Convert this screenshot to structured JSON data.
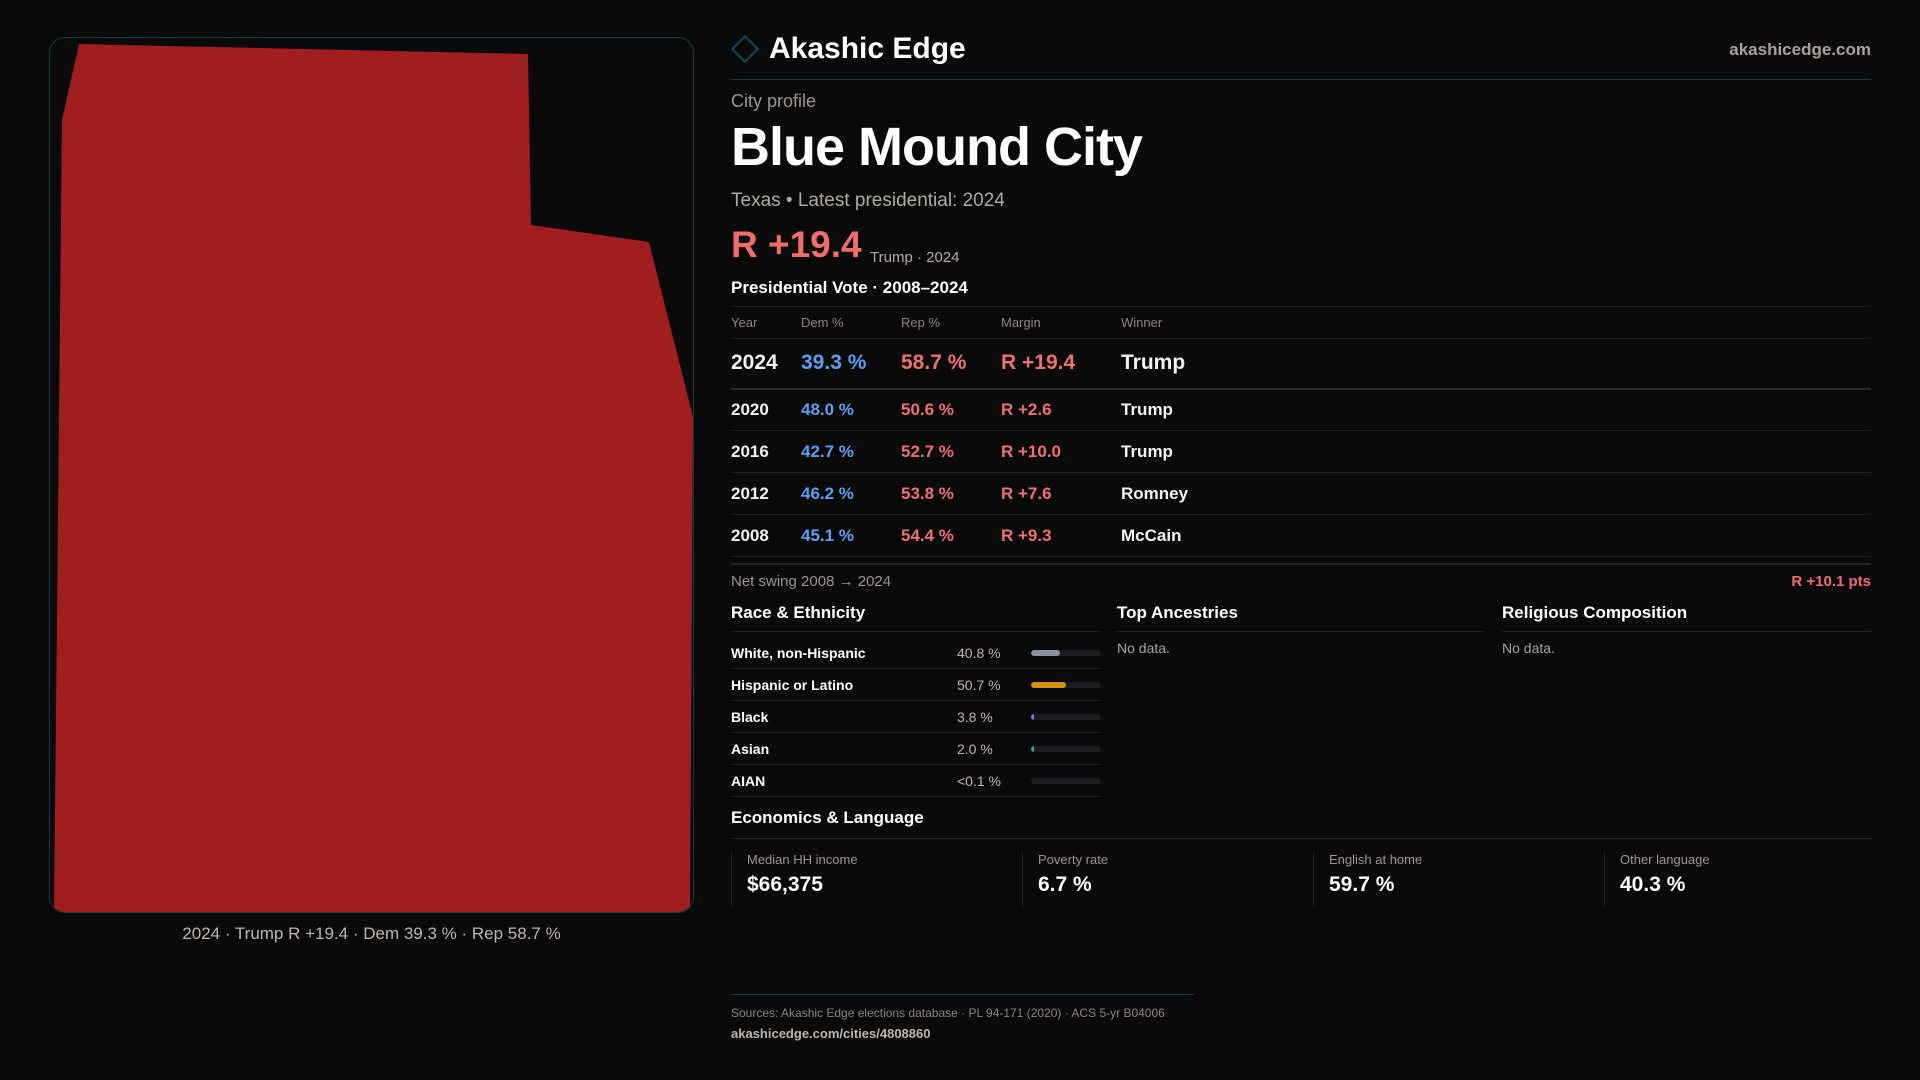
{
  "colors": {
    "rep_fill": "#a01e1f",
    "dem": "#5aa0f0",
    "rep": "#f07070",
    "accent": "#0e4a55",
    "background": "#0a0a0b"
  },
  "map": {
    "winner_party": "R",
    "caption": "2024 · Trump R +19.4 · Dem 39.3 % · Rep 58.7 %"
  },
  "header": {
    "brand": "Akashic Edge",
    "logo_icon": "diamond-icon",
    "site": "akashicedge.com"
  },
  "profile": {
    "kicker": "City profile",
    "title": "Blue Mound City",
    "subtitle": "Texas • Latest presidential: 2024",
    "margin": "R +19.4",
    "margin_note": "Trump · 2024"
  },
  "presidential": {
    "title": "Presidential Vote · 2008–2024",
    "columns": [
      "Year",
      "Dem %",
      "Rep %",
      "Margin",
      "Winner"
    ],
    "rows": [
      {
        "year": "2024",
        "dem": "39.3 %",
        "rep": "58.7 %",
        "margin": "R +19.4",
        "winner": "Trump"
      },
      {
        "year": "2020",
        "dem": "48.0 %",
        "rep": "50.6 %",
        "margin": "R +2.6",
        "winner": "Trump"
      },
      {
        "year": "2016",
        "dem": "42.7 %",
        "rep": "52.7 %",
        "margin": "R +10.0",
        "winner": "Trump"
      },
      {
        "year": "2012",
        "dem": "46.2 %",
        "rep": "53.8 %",
        "margin": "R +7.6",
        "winner": "Romney"
      },
      {
        "year": "2008",
        "dem": "45.1 %",
        "rep": "54.4 %",
        "margin": "R +9.3",
        "winner": "McCain"
      }
    ],
    "swing_label": "Net swing 2008 → 2024",
    "swing_value": "R +10.1 pts"
  },
  "race": {
    "title": "Race & Ethnicity",
    "rows": [
      {
        "label": "White, non-Hispanic",
        "pct": "40.8 %",
        "value": 40.8,
        "color": "#8a93a6"
      },
      {
        "label": "Hispanic or Latino",
        "pct": "50.7 %",
        "value": 50.7,
        "color": "#d4900f"
      },
      {
        "label": "Black",
        "pct": "3.8 %",
        "value": 3.8,
        "color": "#8b6fe0"
      },
      {
        "label": "Asian",
        "pct": "2.0 %",
        "value": 2.0,
        "color": "#20b08a"
      },
      {
        "label": "AIAN",
        "pct": "<0.1 %",
        "value": 0.05,
        "color": "#c0504d"
      }
    ]
  },
  "ancestries": {
    "title": "Top Ancestries",
    "empty": "No data."
  },
  "religion": {
    "title": "Religious Composition",
    "empty": "No data."
  },
  "economics": {
    "title": "Economics & Language",
    "stats": [
      {
        "label": "Median HH income",
        "value": "$66,375"
      },
      {
        "label": "Poverty rate",
        "value": "6.7 %"
      },
      {
        "label": "English at home",
        "value": "59.7 %"
      },
      {
        "label": "Other language",
        "value": "40.3 %"
      }
    ]
  },
  "footer": {
    "sources": "Sources: Akashic Edge elections database · PL 94-171 (2020) · ACS 5-yr B04006",
    "url": "akashicedge.com/cities/4808860"
  }
}
